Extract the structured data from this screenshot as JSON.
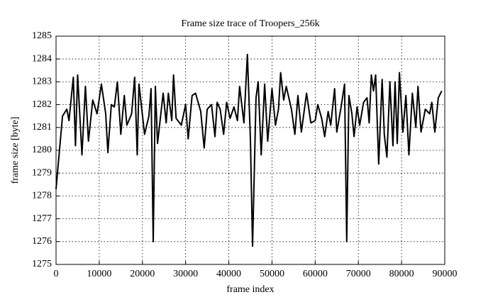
{
  "chart_data": {
    "type": "line",
    "title": "Frame size trace of Troopers_256k",
    "x_label": "frame index",
    "y_label": "frame size [byte]",
    "xlim": [
      0,
      90000
    ],
    "ylim": [
      1275,
      1285
    ],
    "xticks": [
      0,
      10000,
      20000,
      30000,
      40000,
      50000,
      60000,
      70000,
      80000,
      90000
    ],
    "yticks": [
      1275,
      1276,
      1277,
      1278,
      1279,
      1280,
      1281,
      1282,
      1283,
      1284,
      1285
    ],
    "grid": true,
    "series": [
      {
        "color": "#000000",
        "x": [
          0,
          1500,
          2500,
          3000,
          4000,
          4500,
          5000,
          6000,
          6800,
          7500,
          8500,
          9500,
          10500,
          11500,
          12000,
          12800,
          13500,
          14200,
          15000,
          15800,
          16400,
          17500,
          18200,
          18800,
          19200,
          20500,
          21500,
          22000,
          22500,
          23000,
          23500,
          24800,
          25500,
          26000,
          26800,
          27200,
          27800,
          29000,
          30000,
          30600,
          31500,
          32300,
          33500,
          34300,
          35000,
          36000,
          36800,
          37300,
          38000,
          38800,
          39500,
          40300,
          41200,
          42000,
          42500,
          43500,
          44300,
          45000,
          45500,
          46300,
          46800,
          47500,
          48300,
          49000,
          50000,
          50800,
          51500,
          52000,
          52700,
          53300,
          54500,
          55300,
          56000,
          56800,
          58000,
          59000,
          60000,
          60600,
          61500,
          62200,
          63000,
          63600,
          64500,
          65000,
          66000,
          66800,
          67300,
          67800,
          68500,
          69000,
          69700,
          70300,
          71200,
          72000,
          72500,
          73000,
          73500,
          74000,
          74700,
          75500,
          76000,
          76600,
          77300,
          78000,
          78500,
          79000,
          79500,
          80300,
          81000,
          81700,
          82500,
          83300,
          83800,
          84500,
          85500,
          86500,
          87000,
          87700,
          88500,
          89300
        ],
        "values": [
          1278.3,
          1281.5,
          1281.8,
          1281.3,
          1283.2,
          1280.2,
          1283.3,
          1279.8,
          1282.8,
          1280.4,
          1282.2,
          1281.6,
          1282.9,
          1281.6,
          1279.9,
          1282,
          1281.9,
          1283,
          1280.7,
          1282.4,
          1281.1,
          1281.6,
          1283.2,
          1279.8,
          1282.9,
          1280.7,
          1281.5,
          1282.7,
          1276,
          1282.8,
          1280.3,
          1282.5,
          1281.2,
          1282.5,
          1281.3,
          1283.3,
          1281.4,
          1281.1,
          1282,
          1280.5,
          1282.4,
          1282.5,
          1281.7,
          1280.1,
          1281.8,
          1282,
          1280.6,
          1282.1,
          1281.8,
          1280.7,
          1282.1,
          1281.4,
          1281.9,
          1281.3,
          1282.8,
          1281.2,
          1284.2,
          1280.5,
          1275.8,
          1282.3,
          1283,
          1279.8,
          1282.9,
          1280.4,
          1282.7,
          1281.1,
          1281.8,
          1283.4,
          1282.2,
          1282.8,
          1281.8,
          1280.7,
          1282.4,
          1280.8,
          1282.5,
          1281.2,
          1281.3,
          1282,
          1281.4,
          1280.6,
          1281.7,
          1281.1,
          1282.7,
          1280.8,
          1281.9,
          1282.9,
          1276,
          1282.4,
          1281.6,
          1280.6,
          1281.9,
          1281.1,
          1282.1,
          1282.3,
          1281.2,
          1283.3,
          1282.6,
          1283.3,
          1279.4,
          1283.1,
          1280.7,
          1279.7,
          1283,
          1280.2,
          1283,
          1280.3,
          1283.4,
          1280.8,
          1282.4,
          1279.8,
          1282.5,
          1281,
          1282.8,
          1280.8,
          1281.8,
          1281.6,
          1282.1,
          1280.8,
          1282.3,
          1282.6
        ]
      }
    ]
  }
}
